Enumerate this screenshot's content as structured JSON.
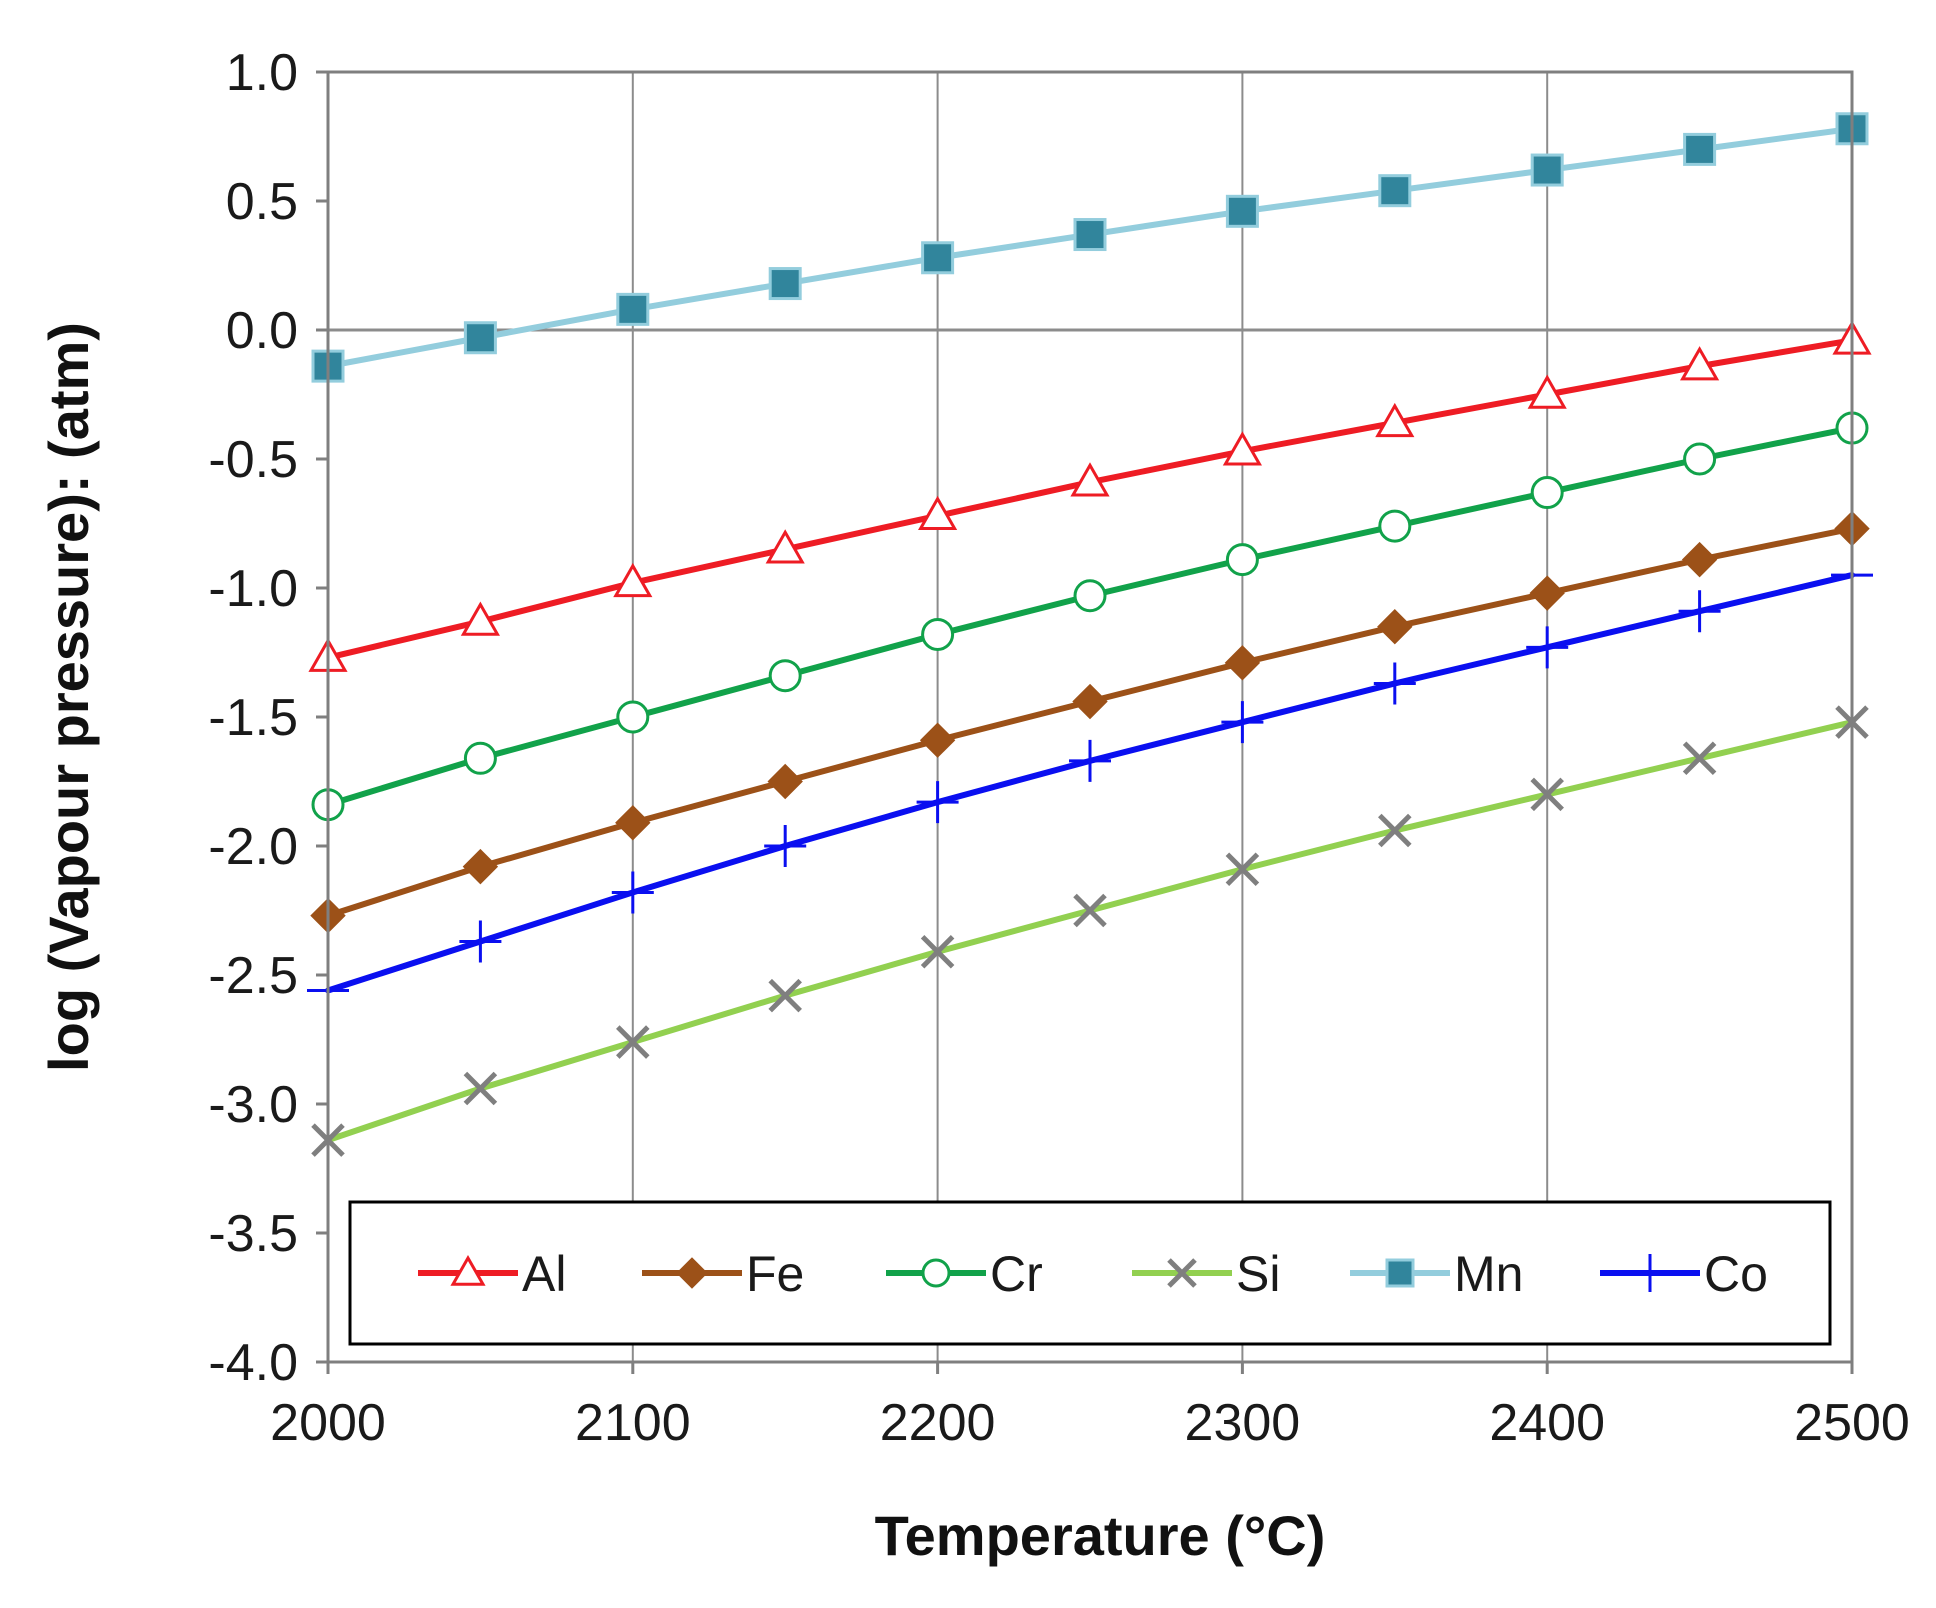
{
  "chart_data": {
    "type": "line",
    "title": "",
    "xlabel": "Temperature (°C)",
    "ylabel": "log (Vapour pressure): (atm)",
    "xlim": [
      2000,
      2500
    ],
    "ylim": [
      -4.0,
      1.0
    ],
    "x_ticks": [
      2000,
      2100,
      2200,
      2300,
      2400,
      2500
    ],
    "y_ticks": [
      -4.0,
      -3.5,
      -3.0,
      -2.5,
      -2.0,
      -1.5,
      -1.0,
      -0.5,
      0.0,
      0.5,
      1.0
    ],
    "grid": "vertical lines at major x ticks",
    "legend_position": "bottom",
    "x": [
      2000,
      2050,
      2100,
      2150,
      2200,
      2250,
      2300,
      2350,
      2400,
      2450,
      2500
    ],
    "series": [
      {
        "name": "Al",
        "color": "#ee1c24",
        "marker": "triangle-open",
        "values": [
          -1.27,
          -1.13,
          -0.98,
          -0.85,
          -0.72,
          -0.59,
          -0.47,
          -0.36,
          -0.25,
          -0.14,
          -0.04
        ]
      },
      {
        "name": "Fe",
        "color": "#9c5118",
        "marker": "diamond-filled",
        "values": [
          -2.27,
          -2.08,
          -1.91,
          -1.75,
          -1.59,
          -1.44,
          -1.29,
          -1.15,
          -1.02,
          -0.89,
          -0.77
        ]
      },
      {
        "name": "Cr",
        "color": "#11a24a",
        "marker": "circle-open",
        "values": [
          -1.84,
          -1.66,
          -1.5,
          -1.34,
          -1.18,
          -1.03,
          -0.89,
          -0.76,
          -0.63,
          -0.5,
          -0.38
        ]
      },
      {
        "name": "Si",
        "color": "#92d050",
        "marker": "x",
        "marker_color": "#7f7f7f",
        "values": [
          -3.14,
          -2.94,
          -2.76,
          -2.58,
          -2.41,
          -2.25,
          -2.09,
          -1.94,
          -1.8,
          -1.66,
          -1.52
        ]
      },
      {
        "name": "Mn",
        "color": "#93cddd",
        "marker": "square-filled",
        "marker_color": "#31859c",
        "values": [
          -0.14,
          -0.03,
          0.08,
          0.18,
          0.28,
          0.37,
          0.46,
          0.54,
          0.62,
          0.7,
          0.78
        ]
      },
      {
        "name": "Co",
        "color": "#0a0ff0",
        "marker": "plus",
        "values": [
          -2.56,
          -2.37,
          -2.18,
          -2.0,
          -1.83,
          -1.67,
          -1.52,
          -1.37,
          -1.23,
          -1.09,
          -0.95
        ]
      }
    ]
  }
}
